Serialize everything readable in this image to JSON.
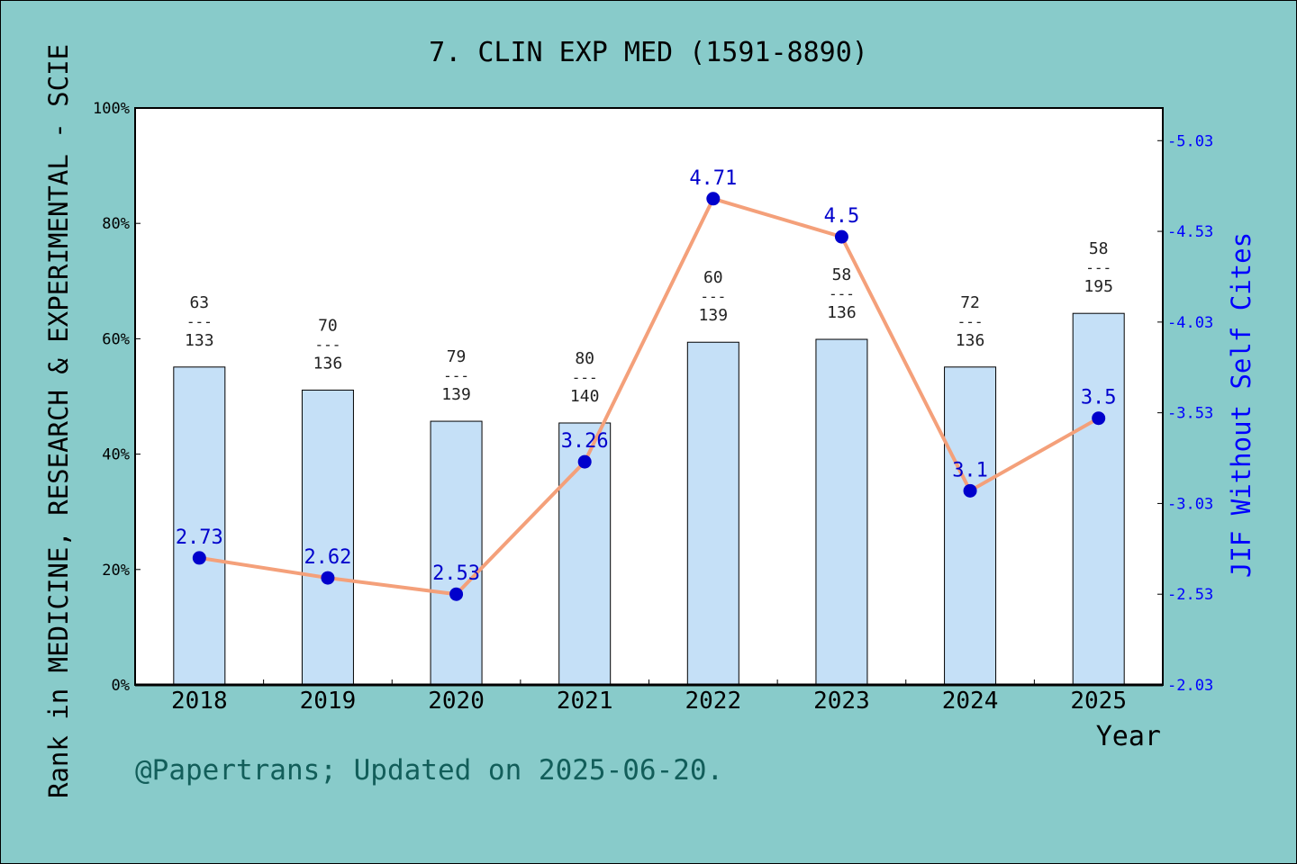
{
  "chart_data": {
    "type": "bar",
    "title": "7. CLIN EXP MED (1591-8890)",
    "xlabel": "Year",
    "ylabel_left": "Rank in MEDICINE, RESEARCH & EXPERIMENTAL - SCIE",
    "ylabel_right": "JIF Without Self Cites",
    "categories": [
      "2018",
      "2019",
      "2020",
      "2021",
      "2022",
      "2023",
      "2024",
      "2025"
    ],
    "rank": [
      63,
      70,
      79,
      80,
      60,
      58,
      72,
      58
    ],
    "total": [
      133,
      136,
      139,
      140,
      139,
      136,
      136,
      195
    ],
    "rank_separator": "---",
    "bar_percent": [
      55.1,
      51.1,
      45.7,
      45.4,
      59.4,
      59.9,
      55.1,
      64.4
    ],
    "jif": [
      2.73,
      2.62,
      2.53,
      3.26,
      4.71,
      4.5,
      3.1,
      3.5
    ],
    "jif_labels": [
      "2.73",
      "2.62",
      "2.53",
      "3.26",
      "4.71",
      "4.5",
      "3.1",
      "3.5"
    ],
    "ylim_left": [
      0,
      100
    ],
    "yticks_left": [
      "0%",
      "20%",
      "40%",
      "60%",
      "80%",
      "100%"
    ],
    "ylim_right": [
      2.03,
      5.21
    ],
    "yticks_right": [
      "2.03",
      "2.53",
      "3.03",
      "3.53",
      "4.03",
      "4.53",
      "5.03"
    ],
    "colors": {
      "background": "#88cbca",
      "plot_area": "#ffffff",
      "bar": "#c5e0f7",
      "line": "#f4a07a",
      "marker": "#0000cc",
      "right_axis": "#0000ff",
      "footer": "#125e5a"
    }
  },
  "footer": "@Papertrans; Updated on 2025-06-20."
}
